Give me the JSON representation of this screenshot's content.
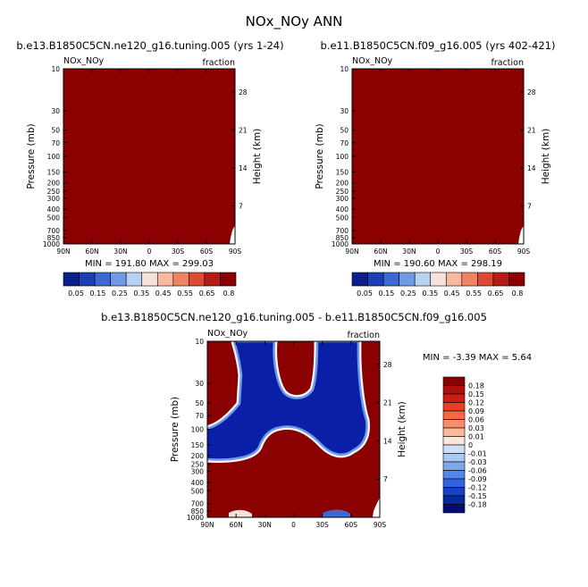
{
  "page_title": "NOx_NOy ANN",
  "colors": {
    "dark_red": "#8b0000",
    "positive_ramp": [
      "#fbe6dc",
      "#fbb89a",
      "#f98e6a",
      "#f36845",
      "#e83f25",
      "#cf1c12",
      "#b00d0b",
      "#8b0000"
    ],
    "negative_ramp": [
      "#cfe0f6",
      "#a9c8f2",
      "#7fa8ec",
      "#5585e6",
      "#3063e0",
      "#1640c8",
      "#0a28a0",
      "#040e72"
    ],
    "ratio_ramp": [
      "#0b1f8c",
      "#1b3fb4",
      "#3b6ad4",
      "#6f9ae6",
      "#b9d2f2",
      "#f6e2d8",
      "#f8b89e",
      "#f08462",
      "#dc4a33",
      "#b41d16",
      "#8b0000"
    ]
  },
  "chart_data": [
    {
      "type": "heatmap",
      "title": "b.e13.B1850C5CN.ne120_g16.tuning.005 (yrs 1-24)",
      "left_label": "NOx_NOy",
      "right_label": "fraction",
      "xticks": [
        "90N",
        "60N",
        "30N",
        "0",
        "30S",
        "60S",
        "90S"
      ],
      "ylabel": "Pressure (mb)",
      "yticks": [
        "10",
        "30",
        "50",
        "70",
        "100",
        "150",
        "200",
        "250",
        "300",
        "400",
        "500",
        "700",
        "850",
        "1000"
      ],
      "ylabel_right": "Height (km)",
      "yticks_right": [
        "28",
        "21",
        "14",
        "7"
      ],
      "stats": "MIN = 191.80   MAX = 299.03",
      "colorbar_labels": [
        "0.05",
        "0.15",
        "0.25",
        "0.35",
        "0.45",
        "0.55",
        "0.65",
        "0.8"
      ]
    },
    {
      "type": "heatmap",
      "title": "b.e11.B1850C5CN.f09_g16.005 (yrs 402-421)",
      "left_label": "NOx_NOy",
      "right_label": "fraction",
      "xticks": [
        "90N",
        "60N",
        "30N",
        "0",
        "30S",
        "60S",
        "90S"
      ],
      "ylabel": "Pressure (mb)",
      "yticks": [
        "10",
        "30",
        "50",
        "70",
        "100",
        "150",
        "200",
        "250",
        "300",
        "400",
        "500",
        "700",
        "850",
        "1000"
      ],
      "ylabel_right": "Height (km)",
      "yticks_right": [
        "28",
        "21",
        "14",
        "7"
      ],
      "stats": "MIN = 190.60   MAX = 298.19",
      "colorbar_labels": [
        "0.05",
        "0.15",
        "0.25",
        "0.35",
        "0.45",
        "0.55",
        "0.65",
        "0.8"
      ]
    },
    {
      "type": "heatmap",
      "title": "b.e13.B1850C5CN.ne120_g16.tuning.005 - b.e11.B1850C5CN.f09_g16.005",
      "left_label": "NOx_NOy",
      "right_label": "fraction",
      "xticks": [
        "90N",
        "60N",
        "30N",
        "0",
        "30S",
        "60S",
        "90S"
      ],
      "ylabel": "Pressure (mb)",
      "yticks": [
        "10",
        "30",
        "50",
        "70",
        "100",
        "150",
        "200",
        "250",
        "300",
        "400",
        "500",
        "700",
        "850",
        "1000"
      ],
      "ylabel_right": "Height (km)",
      "yticks_right": [
        "28",
        "21",
        "14",
        "7"
      ],
      "stats": "MIN =  -3.39   MAX =   5.64",
      "colorbar_labels": [
        "0.18",
        "0.15",
        "0.12",
        "0.09",
        "0.06",
        "0.03",
        "0.01",
        "0",
        "-0.01",
        "-0.03",
        "-0.06",
        "-0.09",
        "-0.12",
        "-0.15",
        "-0.18"
      ]
    }
  ]
}
